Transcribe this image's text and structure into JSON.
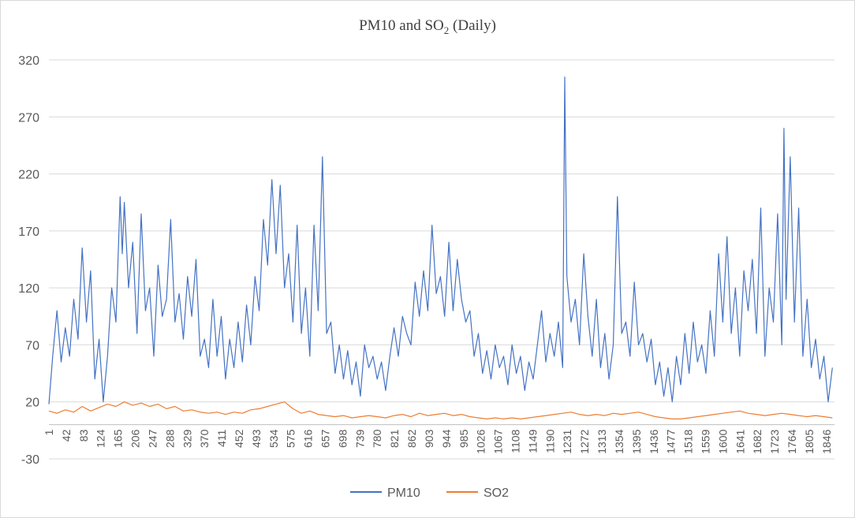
{
  "chart_data": {
    "type": "line",
    "title_main": "PM10 and SO",
    "title_sub": "2",
    "title_tail": " (Daily)",
    "x_min": 1,
    "x_max": 1865,
    "ylim": [
      -30,
      320
    ],
    "yticks": [
      -30,
      20,
      70,
      120,
      170,
      220,
      270,
      320
    ],
    "xticks": [
      "1",
      "42",
      "83",
      "124",
      "165",
      "206",
      "247",
      "288",
      "329",
      "370",
      "411",
      "452",
      "493",
      "534",
      "575",
      "616",
      "657",
      "698",
      "739",
      "780",
      "821",
      "862",
      "903",
      "944",
      "985",
      "1026",
      "1067",
      "1108",
      "1149",
      "1190",
      "1231",
      "1272",
      "1313",
      "1354",
      "1395",
      "1436",
      "1477",
      "1518",
      "1559",
      "1600",
      "1641",
      "1682",
      "1723",
      "1764",
      "1805",
      "1846"
    ],
    "grid": "horizontal",
    "legend": "bottom",
    "series": [
      {
        "name": "PM10",
        "color": "#4472c4",
        "points": [
          [
            1,
            18
          ],
          [
            10,
            60
          ],
          [
            20,
            100
          ],
          [
            30,
            55
          ],
          [
            40,
            85
          ],
          [
            50,
            60
          ],
          [
            60,
            110
          ],
          [
            70,
            75
          ],
          [
            80,
            155
          ],
          [
            90,
            90
          ],
          [
            100,
            135
          ],
          [
            110,
            40
          ],
          [
            120,
            75
          ],
          [
            130,
            20
          ],
          [
            140,
            60
          ],
          [
            150,
            120
          ],
          [
            160,
            90
          ],
          [
            170,
            200
          ],
          [
            175,
            150
          ],
          [
            180,
            195
          ],
          [
            190,
            120
          ],
          [
            200,
            160
          ],
          [
            210,
            80
          ],
          [
            220,
            185
          ],
          [
            230,
            100
          ],
          [
            240,
            120
          ],
          [
            250,
            60
          ],
          [
            260,
            140
          ],
          [
            270,
            95
          ],
          [
            280,
            110
          ],
          [
            290,
            180
          ],
          [
            300,
            90
          ],
          [
            310,
            115
          ],
          [
            320,
            75
          ],
          [
            330,
            130
          ],
          [
            340,
            95
          ],
          [
            350,
            145
          ],
          [
            360,
            60
          ],
          [
            370,
            75
          ],
          [
            380,
            50
          ],
          [
            390,
            110
          ],
          [
            400,
            60
          ],
          [
            410,
            95
          ],
          [
            420,
            40
          ],
          [
            430,
            75
          ],
          [
            440,
            50
          ],
          [
            450,
            90
          ],
          [
            460,
            55
          ],
          [
            470,
            105
          ],
          [
            480,
            70
          ],
          [
            490,
            130
          ],
          [
            500,
            100
          ],
          [
            510,
            180
          ],
          [
            520,
            140
          ],
          [
            530,
            215
          ],
          [
            540,
            150
          ],
          [
            550,
            210
          ],
          [
            560,
            120
          ],
          [
            570,
            150
          ],
          [
            580,
            90
          ],
          [
            590,
            175
          ],
          [
            600,
            80
          ],
          [
            610,
            120
          ],
          [
            620,
            60
          ],
          [
            630,
            175
          ],
          [
            640,
            100
          ],
          [
            650,
            235
          ],
          [
            660,
            80
          ],
          [
            670,
            90
          ],
          [
            680,
            45
          ],
          [
            690,
            70
          ],
          [
            700,
            40
          ],
          [
            710,
            65
          ],
          [
            720,
            35
          ],
          [
            730,
            55
          ],
          [
            740,
            25
          ],
          [
            750,
            70
          ],
          [
            760,
            50
          ],
          [
            770,
            60
          ],
          [
            780,
            40
          ],
          [
            790,
            55
          ],
          [
            800,
            30
          ],
          [
            810,
            60
          ],
          [
            820,
            85
          ],
          [
            830,
            60
          ],
          [
            840,
            95
          ],
          [
            850,
            80
          ],
          [
            860,
            70
          ],
          [
            870,
            125
          ],
          [
            880,
            95
          ],
          [
            890,
            135
          ],
          [
            900,
            100
          ],
          [
            910,
            175
          ],
          [
            920,
            115
          ],
          [
            930,
            130
          ],
          [
            940,
            95
          ],
          [
            950,
            160
          ],
          [
            960,
            100
          ],
          [
            970,
            145
          ],
          [
            980,
            110
          ],
          [
            990,
            90
          ],
          [
            1000,
            100
          ],
          [
            1010,
            60
          ],
          [
            1020,
            80
          ],
          [
            1030,
            45
          ],
          [
            1040,
            65
          ],
          [
            1050,
            40
          ],
          [
            1060,
            70
          ],
          [
            1070,
            50
          ],
          [
            1080,
            60
          ],
          [
            1090,
            35
          ],
          [
            1100,
            70
          ],
          [
            1110,
            45
          ],
          [
            1120,
            60
          ],
          [
            1130,
            30
          ],
          [
            1140,
            55
          ],
          [
            1150,
            40
          ],
          [
            1160,
            70
          ],
          [
            1170,
            100
          ],
          [
            1180,
            55
          ],
          [
            1190,
            80
          ],
          [
            1200,
            60
          ],
          [
            1210,
            90
          ],
          [
            1220,
            50
          ],
          [
            1225,
            305
          ],
          [
            1230,
            130
          ],
          [
            1240,
            90
          ],
          [
            1250,
            110
          ],
          [
            1260,
            70
          ],
          [
            1270,
            150
          ],
          [
            1280,
            95
          ],
          [
            1290,
            60
          ],
          [
            1300,
            110
          ],
          [
            1310,
            50
          ],
          [
            1320,
            80
          ],
          [
            1330,
            40
          ],
          [
            1340,
            70
          ],
          [
            1350,
            200
          ],
          [
            1360,
            80
          ],
          [
            1370,
            90
          ],
          [
            1380,
            60
          ],
          [
            1390,
            125
          ],
          [
            1400,
            70
          ],
          [
            1410,
            80
          ],
          [
            1420,
            55
          ],
          [
            1430,
            75
          ],
          [
            1440,
            35
          ],
          [
            1450,
            55
          ],
          [
            1460,
            25
          ],
          [
            1470,
            50
          ],
          [
            1480,
            20
          ],
          [
            1490,
            60
          ],
          [
            1500,
            35
          ],
          [
            1510,
            80
          ],
          [
            1520,
            45
          ],
          [
            1530,
            90
          ],
          [
            1540,
            55
          ],
          [
            1550,
            70
          ],
          [
            1560,
            45
          ],
          [
            1570,
            100
          ],
          [
            1580,
            60
          ],
          [
            1590,
            150
          ],
          [
            1600,
            90
          ],
          [
            1610,
            165
          ],
          [
            1620,
            80
          ],
          [
            1630,
            120
          ],
          [
            1640,
            60
          ],
          [
            1650,
            135
          ],
          [
            1660,
            100
          ],
          [
            1670,
            145
          ],
          [
            1680,
            80
          ],
          [
            1690,
            190
          ],
          [
            1700,
            60
          ],
          [
            1710,
            120
          ],
          [
            1720,
            90
          ],
          [
            1730,
            185
          ],
          [
            1740,
            70
          ],
          [
            1745,
            260
          ],
          [
            1750,
            110
          ],
          [
            1760,
            235
          ],
          [
            1770,
            90
          ],
          [
            1780,
            190
          ],
          [
            1790,
            60
          ],
          [
            1800,
            110
          ],
          [
            1810,
            50
          ],
          [
            1820,
            75
          ],
          [
            1830,
            40
          ],
          [
            1840,
            60
          ],
          [
            1850,
            20
          ],
          [
            1860,
            50
          ]
        ]
      },
      {
        "name": "SO2",
        "color": "#ed7d31",
        "points": [
          [
            1,
            12
          ],
          [
            20,
            10
          ],
          [
            40,
            13
          ],
          [
            60,
            11
          ],
          [
            80,
            16
          ],
          [
            100,
            12
          ],
          [
            120,
            15
          ],
          [
            140,
            18
          ],
          [
            160,
            16
          ],
          [
            180,
            20
          ],
          [
            200,
            17
          ],
          [
            220,
            19
          ],
          [
            240,
            16
          ],
          [
            260,
            18
          ],
          [
            280,
            14
          ],
          [
            300,
            16
          ],
          [
            320,
            12
          ],
          [
            340,
            13
          ],
          [
            360,
            11
          ],
          [
            380,
            10
          ],
          [
            400,
            11
          ],
          [
            420,
            9
          ],
          [
            440,
            11
          ],
          [
            460,
            10
          ],
          [
            480,
            13
          ],
          [
            500,
            14
          ],
          [
            520,
            16
          ],
          [
            540,
            18
          ],
          [
            560,
            20
          ],
          [
            580,
            14
          ],
          [
            600,
            10
          ],
          [
            620,
            12
          ],
          [
            640,
            9
          ],
          [
            660,
            8
          ],
          [
            680,
            7
          ],
          [
            700,
            8
          ],
          [
            720,
            6
          ],
          [
            740,
            7
          ],
          [
            760,
            8
          ],
          [
            780,
            7
          ],
          [
            800,
            6
          ],
          [
            820,
            8
          ],
          [
            840,
            9
          ],
          [
            860,
            7
          ],
          [
            880,
            10
          ],
          [
            900,
            8
          ],
          [
            920,
            9
          ],
          [
            940,
            10
          ],
          [
            960,
            8
          ],
          [
            980,
            9
          ],
          [
            1000,
            7
          ],
          [
            1020,
            6
          ],
          [
            1040,
            5
          ],
          [
            1060,
            6
          ],
          [
            1080,
            5
          ],
          [
            1100,
            6
          ],
          [
            1120,
            5
          ],
          [
            1140,
            6
          ],
          [
            1160,
            7
          ],
          [
            1180,
            8
          ],
          [
            1200,
            9
          ],
          [
            1220,
            10
          ],
          [
            1240,
            11
          ],
          [
            1260,
            9
          ],
          [
            1280,
            8
          ],
          [
            1300,
            9
          ],
          [
            1320,
            8
          ],
          [
            1340,
            10
          ],
          [
            1360,
            9
          ],
          [
            1380,
            10
          ],
          [
            1400,
            11
          ],
          [
            1420,
            9
          ],
          [
            1440,
            7
          ],
          [
            1460,
            6
          ],
          [
            1480,
            5
          ],
          [
            1500,
            5
          ],
          [
            1520,
            6
          ],
          [
            1540,
            7
          ],
          [
            1560,
            8
          ],
          [
            1580,
            9
          ],
          [
            1600,
            10
          ],
          [
            1620,
            11
          ],
          [
            1640,
            12
          ],
          [
            1660,
            10
          ],
          [
            1680,
            9
          ],
          [
            1700,
            8
          ],
          [
            1720,
            9
          ],
          [
            1740,
            10
          ],
          [
            1760,
            9
          ],
          [
            1780,
            8
          ],
          [
            1800,
            7
          ],
          [
            1820,
            8
          ],
          [
            1840,
            7
          ],
          [
            1860,
            6
          ]
        ]
      }
    ]
  }
}
